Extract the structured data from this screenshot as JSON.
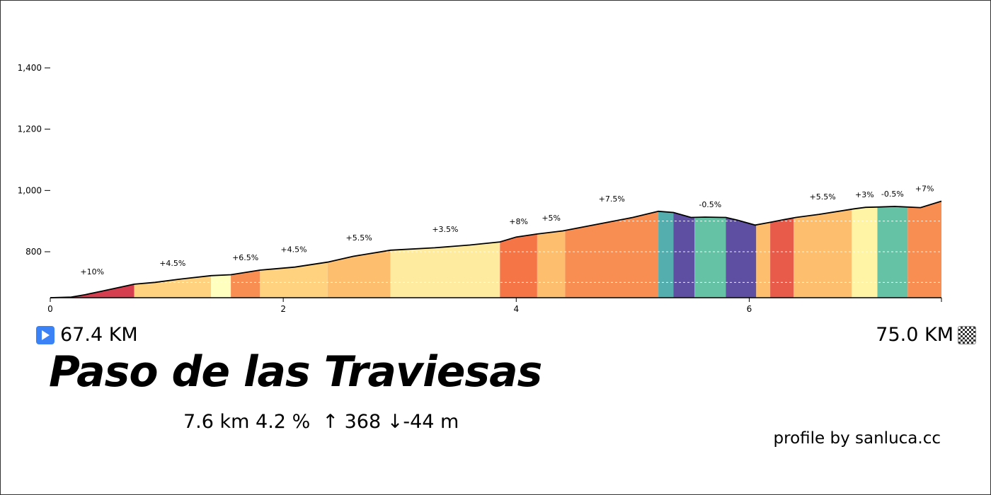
{
  "chart_data": {
    "type": "area",
    "title": "Paso de las Traviesas",
    "xlabel": "",
    "ylabel": "",
    "xlim": [
      0,
      7.65
    ],
    "ylim": [
      650,
      1550
    ],
    "x_ticks": [
      {
        "value": 0,
        "label": "0"
      },
      {
        "value": 2,
        "label": "2"
      },
      {
        "value": 4,
        "label": "4"
      },
      {
        "value": 6,
        "label": "6"
      }
    ],
    "y_ticks": [
      {
        "value": 800,
        "label": "800"
      },
      {
        "value": 1000,
        "label": "1,000"
      },
      {
        "value": 1200,
        "label": "1,200"
      },
      {
        "value": 1400,
        "label": "1,400"
      }
    ],
    "dashed_gridlines_y": [
      700,
      800,
      900
    ],
    "elevation_profile": [
      [
        0,
        650
      ],
      [
        0.18,
        652
      ],
      [
        0.3,
        660
      ],
      [
        0.45,
        672
      ],
      [
        0.72,
        694
      ],
      [
        0.9,
        700
      ],
      [
        1.1,
        710
      ],
      [
        1.38,
        722
      ],
      [
        1.55,
        725
      ],
      [
        1.8,
        740
      ],
      [
        2.1,
        750
      ],
      [
        2.38,
        766
      ],
      [
        2.6,
        785
      ],
      [
        2.92,
        805
      ],
      [
        3.3,
        813
      ],
      [
        3.6,
        822
      ],
      [
        3.86,
        832
      ],
      [
        4.0,
        848
      ],
      [
        4.18,
        858
      ],
      [
        4.4,
        868
      ],
      [
        4.7,
        890
      ],
      [
        5.0,
        912
      ],
      [
        5.22,
        932
      ],
      [
        5.35,
        928
      ],
      [
        5.5,
        912
      ],
      [
        5.62,
        913
      ],
      [
        5.8,
        912
      ],
      [
        5.9,
        903
      ],
      [
        6.05,
        887
      ],
      [
        6.18,
        896
      ],
      [
        6.3,
        905
      ],
      [
        6.4,
        912
      ],
      [
        6.6,
        922
      ],
      [
        6.9,
        940
      ],
      [
        7.0,
        945
      ],
      [
        7.12,
        946
      ],
      [
        7.25,
        948
      ],
      [
        7.47,
        944
      ],
      [
        7.65,
        965
      ]
    ],
    "segments": [
      {
        "from": 0.0,
        "to": 0.72,
        "grade": "+10%",
        "color": "#d53e4f"
      },
      {
        "from": 0.72,
        "to": 1.38,
        "grade": "+4.5%",
        "color": "#fed27f"
      },
      {
        "from": 1.38,
        "to": 1.55,
        "grade": "",
        "color": "#ffffbf"
      },
      {
        "from": 1.55,
        "to": 1.8,
        "grade": "+6.5%",
        "color": "#f98e52"
      },
      {
        "from": 1.8,
        "to": 2.38,
        "grade": "+4.5%",
        "color": "#fed27f"
      },
      {
        "from": 2.38,
        "to": 2.92,
        "grade": "+5.5%",
        "color": "#fdbe6e"
      },
      {
        "from": 2.92,
        "to": 3.86,
        "grade": "+3.5%",
        "color": "#feeb9f"
      },
      {
        "from": 3.86,
        "to": 4.18,
        "grade": "+8%",
        "color": "#f57547"
      },
      {
        "from": 4.18,
        "to": 4.42,
        "grade": "+5%",
        "color": "#fdbe6e"
      },
      {
        "from": 4.42,
        "to": 5.22,
        "grade": "+7.5%",
        "color": "#f98e52"
      },
      {
        "from": 5.22,
        "to": 5.35,
        "grade": "",
        "color": "#54aead"
      },
      {
        "from": 5.35,
        "to": 5.53,
        "grade": "",
        "color": "#5e4fa2"
      },
      {
        "from": 5.53,
        "to": 5.8,
        "grade": "-0.5%",
        "color": "#66c2a5"
      },
      {
        "from": 5.8,
        "to": 6.06,
        "grade": "",
        "color": "#5e4fa2"
      },
      {
        "from": 6.06,
        "to": 6.18,
        "grade": "",
        "color": "#fdbe6e"
      },
      {
        "from": 6.18,
        "to": 6.38,
        "grade": "",
        "color": "#e85b4a"
      },
      {
        "from": 6.38,
        "to": 6.88,
        "grade": "+5.5%",
        "color": "#fdbe6e"
      },
      {
        "from": 6.88,
        "to": 7.1,
        "grade": "+3%",
        "color": "#fff3a6"
      },
      {
        "from": 7.1,
        "to": 7.36,
        "grade": "-0.5%",
        "color": "#66c2a5"
      },
      {
        "from": 7.36,
        "to": 7.65,
        "grade": "+7%",
        "color": "#f98e52"
      }
    ]
  },
  "header": {
    "start_label": "67.4 KM",
    "end_label": "75.0 KM",
    "start_icon": "play-icon",
    "end_icon": "checkered-flag-icon"
  },
  "climb": {
    "name": "Paso de las Traviesas",
    "stats": "7.6 km 4.2 %  ↑ 368 ↓-44 m"
  },
  "credit": "profile by sanluca.cc"
}
